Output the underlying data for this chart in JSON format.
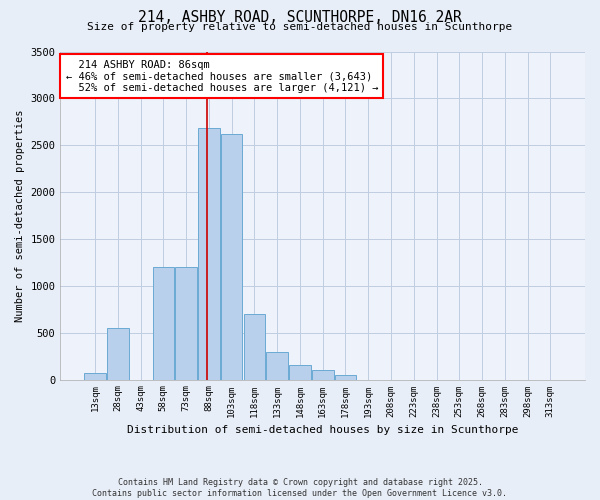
{
  "title": "214, ASHBY ROAD, SCUNTHORPE, DN16 2AR",
  "subtitle": "Size of property relative to semi-detached houses in Scunthorpe",
  "xlabel": "Distribution of semi-detached houses by size in Scunthorpe",
  "ylabel": "Number of semi-detached properties",
  "bar_values": [
    75,
    550,
    0,
    1200,
    1200,
    2680,
    2620,
    700,
    290,
    150,
    100,
    50,
    0,
    0,
    0,
    0,
    0,
    0,
    0,
    0,
    0
  ],
  "bar_labels": [
    "13sqm",
    "28sqm",
    "43sqm",
    "58sqm",
    "73sqm",
    "88sqm",
    "103sqm",
    "118sqm",
    "133sqm",
    "148sqm",
    "163sqm",
    "178sqm",
    "193sqm",
    "208sqm",
    "223sqm",
    "238sqm",
    "253sqm",
    "268sqm",
    "283sqm",
    "298sqm",
    "313sqm"
  ],
  "bar_color": "#b8d0eb",
  "bar_edge_color": "#6aaad4",
  "property_label": "214 ASHBY ROAD: 86sqm",
  "vline_x_index": 4.93,
  "pct_smaller": 46,
  "num_smaller": 3643,
  "pct_larger": 52,
  "num_larger": 4121,
  "vline_color": "#cc0000",
  "ylim": [
    0,
    3500
  ],
  "yticks": [
    0,
    500,
    1000,
    1500,
    2000,
    2500,
    3000,
    3500
  ],
  "footnote1": "Contains HM Land Registry data © Crown copyright and database right 2025.",
  "footnote2": "Contains public sector information licensed under the Open Government Licence v3.0.",
  "background_color": "#e8eef8",
  "plot_bg_color": "#eef2fa"
}
